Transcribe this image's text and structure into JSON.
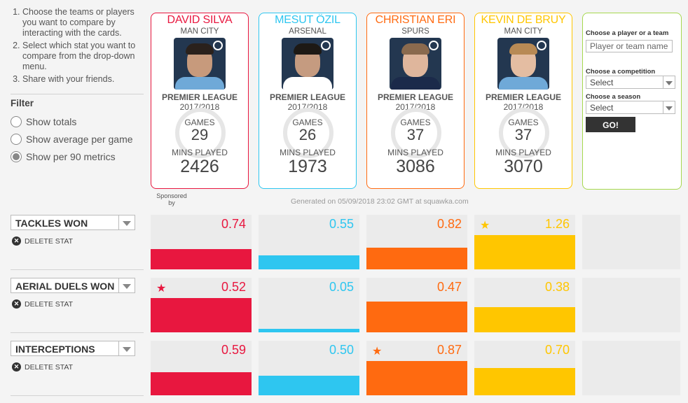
{
  "instructions": [
    "Choose the teams or players you want to compare by interacting with the cards.",
    "Select which stat you want to compare from the drop-down menu.",
    "Share with your friends."
  ],
  "filter": {
    "title": "Filter",
    "options": [
      "Show totals",
      "Show average per game",
      "Show per 90 metrics"
    ],
    "selected_index": 2
  },
  "players": [
    {
      "name": "DAVID SILVA",
      "club": "MAN CITY",
      "league": "PREMIER LEAGUE",
      "season": "2017/2018",
      "games_label": "GAMES",
      "games": "29",
      "mins_label": "MINS PLAYED",
      "mins": "2426",
      "color": "#e8173f"
    },
    {
      "name": "MESUT ÖZIL",
      "club": "ARSENAL",
      "league": "PREMIER LEAGUE",
      "season": "2017/2018",
      "games_label": "GAMES",
      "games": "26",
      "mins_label": "MINS PLAYED",
      "mins": "1973",
      "color": "#2ec6f0"
    },
    {
      "name": "CHRISTIAN ERI",
      "club": "SPURS",
      "league": "PREMIER LEAGUE",
      "season": "2017/2018",
      "games_label": "GAMES",
      "games": "37",
      "mins_label": "MINS PLAYED",
      "mins": "3086",
      "color": "#ff6a10"
    },
    {
      "name": "KEVIN DE BRUY",
      "club": "MAN CITY",
      "league": "PREMIER LEAGUE",
      "season": "2017/2018",
      "games_label": "GAMES",
      "games": "37",
      "mins_label": "MINS PLAYED",
      "mins": "3070",
      "color": "#ffc600"
    }
  ],
  "search": {
    "player_label": "Choose a player or a team",
    "player_placeholder": "Player or team name",
    "competition_label": "Choose a competition",
    "competition_value": "Select",
    "season_label": "Choose a season",
    "season_value": "Select",
    "go_label": "GO!"
  },
  "sponsored_by": "Sponsored by",
  "generated": "Generated on 05/09/2018 23:02 GMT at squawka.com",
  "delete_label": "DELETE STAT",
  "stats": [
    {
      "name": "TACKLES WON",
      "values": [
        "0.74",
        "0.55",
        "0.82",
        "1.26"
      ],
      "levels": [
        0.37,
        0.26,
        0.4,
        0.63
      ],
      "best_index": 3
    },
    {
      "name": "AERIAL DUELS WON",
      "values": [
        "0.52",
        "0.05",
        "0.47",
        "0.38"
      ],
      "levels": [
        0.63,
        0.06,
        0.57,
        0.46
      ],
      "best_index": 0
    },
    {
      "name": "INTERCEPTIONS",
      "values": [
        "0.59",
        "0.50",
        "0.87",
        "0.70"
      ],
      "levels": [
        0.42,
        0.36,
        0.63,
        0.5
      ],
      "best_index": 2
    }
  ],
  "icons": {
    "star": "star-icon",
    "delete": "delete-icon",
    "club_badge": "club-badge-icon"
  }
}
